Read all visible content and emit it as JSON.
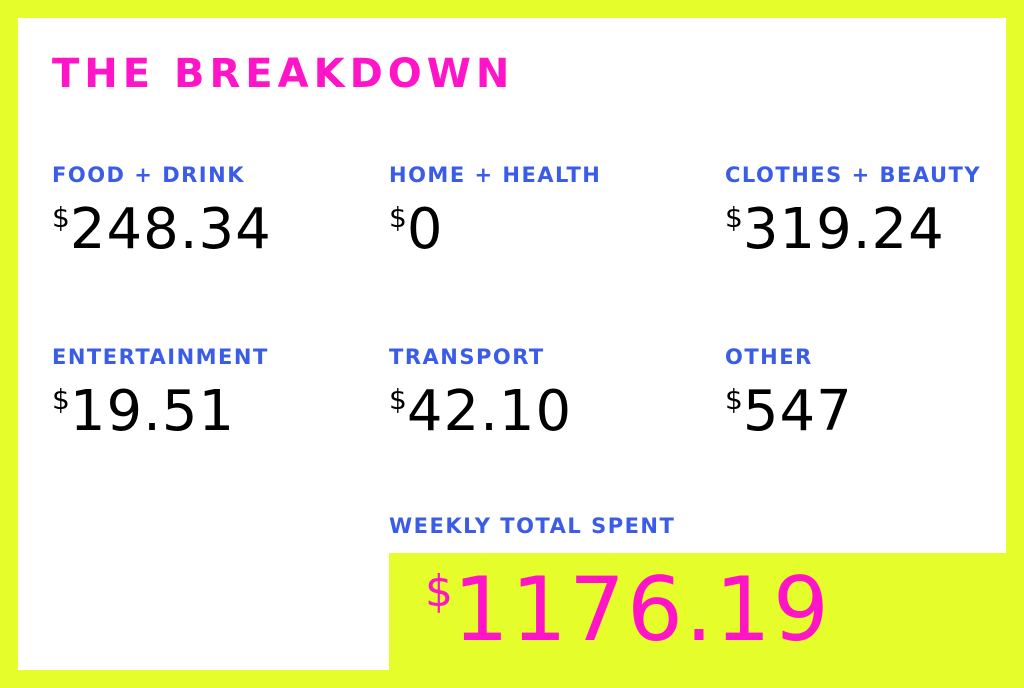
{
  "title": "THE BREAKDOWN",
  "currency_symbol": "$",
  "categories": [
    {
      "label": "FOOD + DRINK",
      "amount": "248.34"
    },
    {
      "label": "HOME + HEALTH",
      "amount": "0"
    },
    {
      "label": "CLOTHES + BEAUTY",
      "amount": "319.24"
    },
    {
      "label": "ENTERTAINMENT",
      "amount": "19.51"
    },
    {
      "label": "TRANSPORT",
      "amount": "42.10"
    },
    {
      "label": "OTHER",
      "amount": "547"
    }
  ],
  "total": {
    "label": "WEEKLY TOTAL SPENT",
    "amount": "1176.19"
  },
  "colors": {
    "background": "#e4fd2b",
    "card": "#ffffff",
    "title": "#ff14c8",
    "labels": "#3a5ce6",
    "amounts": "#000000",
    "total_amount": "#ff14c8"
  }
}
